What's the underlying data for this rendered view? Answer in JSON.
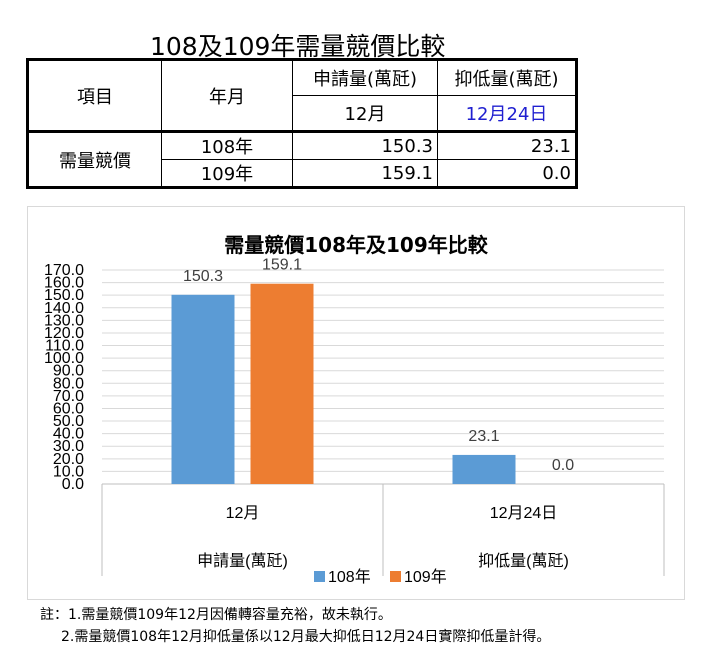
{
  "table": {
    "title": "108及109年需量競價比較",
    "header": {
      "col_item": "項目",
      "col_month": "年月",
      "col_request": "申請量(萬瓩)",
      "col_suppress": "抑低量(萬瓩)",
      "sub_request": "12月",
      "sub_suppress": "12月24日"
    },
    "group_label": "需量競價",
    "rows": [
      {
        "year": "108年",
        "request": "150.3",
        "suppress": "23.1"
      },
      {
        "year": "109年",
        "request": "159.1",
        "suppress": "0.0"
      }
    ]
  },
  "chart_data": {
    "type": "bar",
    "title": "需量競價108年及109年比較",
    "categories": [
      "12月",
      "12月24日"
    ],
    "category_groups": [
      "申請量(萬瓩)",
      "抑低量(萬瓩)"
    ],
    "series": [
      {
        "name": "108年",
        "values": [
          150.3,
          23.1
        ],
        "labels": [
          "150.3",
          "23.1"
        ],
        "color": "#5b9bd5"
      },
      {
        "name": "109年",
        "values": [
          159.1,
          0.0
        ],
        "labels": [
          "159.1",
          "0.0"
        ],
        "color": "#ed7d31"
      }
    ],
    "ylim": [
      0,
      170
    ],
    "y_ticks": [
      "0.0",
      "10.0",
      "20.0",
      "30.0",
      "40.0",
      "50.0",
      "60.0",
      "70.0",
      "80.0",
      "90.0",
      "100.0",
      "110.0",
      "120.0",
      "130.0",
      "140.0",
      "150.0",
      "160.0",
      "170.0"
    ],
    "grid": true,
    "legend": "bottom"
  },
  "notes": [
    "註：1.需量競價109年12月因備轉容量充裕，故未執行。",
    "2.需量競價108年12月抑低量係以12月最大抑低日12月24日實際抑低量計得。"
  ]
}
